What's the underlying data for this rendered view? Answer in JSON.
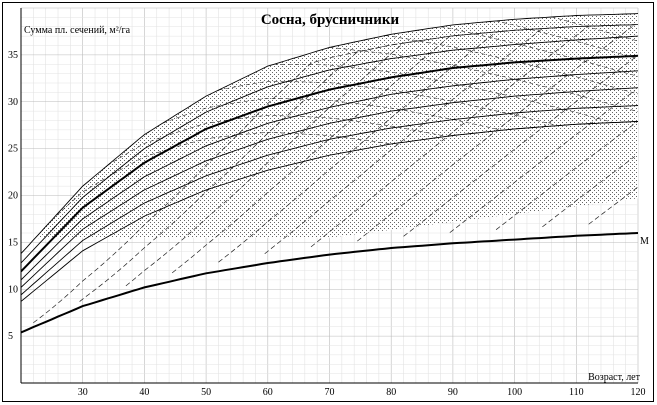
{
  "chart_data": {
    "type": "line",
    "title": "Сосна, брусничники",
    "ylabel": "Сумма пл. сечений, м²/га",
    "xlabel": "Возраст, лет",
    "xlim": [
      20,
      120
    ],
    "ylim": [
      0,
      40
    ],
    "x_ticks": [
      30,
      40,
      50,
      60,
      70,
      80,
      90,
      100,
      110,
      120
    ],
    "y_ticks": [
      5,
      10,
      15,
      20,
      25,
      30,
      35
    ],
    "grid": true,
    "shaded_band": {
      "lower": 15.5,
      "upper": 19.7,
      "note": "stippled region above normal-stocking band"
    },
    "series": [
      {
        "name": "",
        "x": [
          20,
          30,
          40,
          50,
          60,
          70,
          80,
          90,
          100,
          110,
          120
        ],
        "values": [
          13.8,
          21.0,
          26.5,
          30.6,
          33.8,
          35.8,
          37.2,
          38.2,
          38.8,
          39.2,
          39.4
        ]
      },
      {
        "name": "",
        "x": [
          20,
          30,
          40,
          50,
          60,
          70,
          80,
          90,
          100,
          110,
          120
        ],
        "values": [
          12.8,
          19.8,
          25.0,
          28.9,
          31.6,
          33.4,
          34.6,
          35.5,
          36.1,
          36.6,
          37.0
        ]
      },
      {
        "name": "",
        "x": [
          20,
          30,
          40,
          50,
          60,
          70,
          80,
          90,
          100,
          110,
          120
        ],
        "values": [
          11.9,
          18.7,
          23.5,
          27.1,
          29.5,
          31.3,
          32.6,
          33.6,
          34.2,
          34.6,
          34.9
        ]
      },
      {
        "name": "",
        "x": [
          20,
          30,
          40,
          50,
          60,
          70,
          80,
          90,
          100,
          110,
          120
        ],
        "values": [
          11.0,
          17.5,
          22.0,
          25.3,
          27.7,
          29.4,
          30.8,
          31.7,
          32.4,
          32.9,
          33.3
        ]
      },
      {
        "name": "",
        "x": [
          20,
          30,
          40,
          50,
          60,
          70,
          80,
          90,
          100,
          110,
          120
        ],
        "values": [
          10.2,
          16.4,
          20.6,
          23.7,
          26.0,
          27.7,
          29.0,
          29.9,
          30.6,
          31.1,
          31.5
        ]
      },
      {
        "name": "",
        "x": [
          20,
          30,
          40,
          50,
          60,
          70,
          80,
          90,
          100,
          110,
          120
        ],
        "values": [
          9.4,
          15.2,
          19.2,
          22.1,
          24.3,
          26.0,
          27.2,
          28.1,
          28.8,
          29.3,
          29.6
        ]
      },
      {
        "name": "",
        "x": [
          20,
          30,
          40,
          50,
          60,
          70,
          80,
          90,
          100,
          110,
          120
        ],
        "values": [
          8.7,
          14.1,
          17.8,
          20.6,
          22.7,
          24.3,
          25.5,
          26.4,
          27.1,
          27.6,
          27.9
        ]
      },
      {
        "name": "",
        "x": [
          20,
          30,
          40,
          50,
          60,
          70,
          80,
          90,
          100,
          110,
          120
        ],
        "values": [
          5.4,
          8.2,
          10.2,
          11.7,
          12.8,
          13.7,
          14.4,
          14.9,
          15.3,
          15.7,
          16.0
        ]
      }
    ],
    "end_label": "M"
  }
}
